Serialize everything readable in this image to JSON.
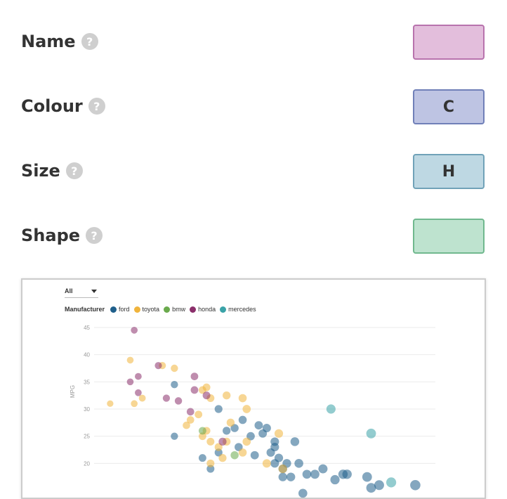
{
  "encodings": {
    "name": {
      "label": "Name",
      "help_icon": "?",
      "value": "",
      "bg": "#e3bedc",
      "border": "#b873ad"
    },
    "colour": {
      "label": "Colour",
      "help_icon": "?",
      "value": "C",
      "bg": "#bec4e3",
      "border": "#7080b8"
    },
    "size": {
      "label": "Size",
      "help_icon": "?",
      "value": "H",
      "bg": "#bed8e3",
      "border": "#70a2b8"
    },
    "shape": {
      "label": "Shape",
      "help_icon": "?",
      "value": "",
      "bg": "#bee3cf",
      "border": "#70b88e"
    }
  },
  "chart_panel": {
    "filter_value": "All",
    "legend_title": "Manufacturer",
    "legend": [
      {
        "name": "ford",
        "color": "#1f5f8b"
      },
      {
        "name": "toyota",
        "color": "#f0b43c"
      },
      {
        "name": "bmw",
        "color": "#6aaa4c"
      },
      {
        "name": "honda",
        "color": "#8b2f6b"
      },
      {
        "name": "mercedes",
        "color": "#3aa3a8"
      }
    ]
  },
  "chart_data": {
    "type": "scatter",
    "ylabel": "MPG",
    "xlabel": "",
    "ylim": [
      15,
      45
    ],
    "yticks": [
      20,
      25,
      30,
      35,
      40,
      45
    ],
    "grid": true,
    "series": [
      {
        "name": "ford",
        "color": "#1f5f8b",
        "points": [
          [
            3.5,
            34.5
          ],
          [
            3.5,
            25
          ],
          [
            4.2,
            21
          ],
          [
            4.4,
            19
          ],
          [
            4.6,
            30
          ],
          [
            4.8,
            26
          ],
          [
            4.6,
            22
          ],
          [
            5.0,
            26.5
          ],
          [
            5.2,
            28
          ],
          [
            5.1,
            23
          ],
          [
            5.4,
            25
          ],
          [
            5.5,
            21.5
          ],
          [
            5.6,
            27
          ],
          [
            5.8,
            26.5
          ],
          [
            5.9,
            22
          ],
          [
            6.0,
            24
          ],
          [
            6.0,
            23
          ],
          [
            6.1,
            21
          ],
          [
            6.0,
            20
          ],
          [
            6.2,
            19
          ],
          [
            6.3,
            20
          ],
          [
            6.4,
            17.5
          ],
          [
            6.6,
            20
          ],
          [
            6.5,
            24
          ],
          [
            6.8,
            18
          ],
          [
            7.0,
            18
          ],
          [
            7.2,
            19
          ],
          [
            7.5,
            17
          ],
          [
            7.7,
            18
          ],
          [
            7.8,
            18
          ],
          [
            8.3,
            17.5
          ],
          [
            8.4,
            15.5
          ],
          [
            8.6,
            16
          ],
          [
            9.5,
            16
          ],
          [
            5.7,
            25.5
          ],
          [
            6.2,
            17.5
          ],
          [
            6.7,
            14.5
          ]
        ]
      },
      {
        "name": "toyota",
        "color": "#f0b43c",
        "points": [
          [
            1.9,
            31
          ],
          [
            2.4,
            39
          ],
          [
            2.5,
            31
          ],
          [
            2.7,
            32
          ],
          [
            3.2,
            38
          ],
          [
            3.5,
            37.5
          ],
          [
            3.8,
            27
          ],
          [
            3.9,
            28
          ],
          [
            4.1,
            29
          ],
          [
            4.2,
            25
          ],
          [
            4.3,
            26
          ],
          [
            4.4,
            24
          ],
          [
            4.2,
            33.5
          ],
          [
            4.3,
            34
          ],
          [
            4.4,
            32
          ],
          [
            4.8,
            32.5
          ],
          [
            4.6,
            23
          ],
          [
            4.7,
            21
          ],
          [
            4.4,
            20
          ],
          [
            4.8,
            24
          ],
          [
            4.9,
            27.5
          ],
          [
            5.2,
            32
          ],
          [
            5.3,
            30
          ],
          [
            5.3,
            24
          ],
          [
            5.2,
            22
          ],
          [
            5.8,
            20
          ],
          [
            6.1,
            25.5
          ],
          [
            6.2,
            19
          ]
        ]
      },
      {
        "name": "bmw",
        "color": "#6aaa4c",
        "points": [
          [
            4.2,
            26
          ],
          [
            5.0,
            21.5
          ]
        ]
      },
      {
        "name": "honda",
        "color": "#8b2f6b",
        "points": [
          [
            2.5,
            44.5
          ],
          [
            2.4,
            35
          ],
          [
            2.6,
            36
          ],
          [
            2.6,
            33
          ],
          [
            3.1,
            38
          ],
          [
            3.3,
            32
          ],
          [
            3.6,
            31.5
          ],
          [
            3.9,
            29.5
          ],
          [
            4.0,
            36
          ],
          [
            4.0,
            33.5
          ],
          [
            4.3,
            32.5
          ],
          [
            4.7,
            24
          ]
        ]
      },
      {
        "name": "mercedes",
        "color": "#3aa3a8",
        "points": [
          [
            7.4,
            30
          ],
          [
            8.4,
            25.5
          ],
          [
            8.9,
            16.5
          ]
        ]
      }
    ]
  }
}
